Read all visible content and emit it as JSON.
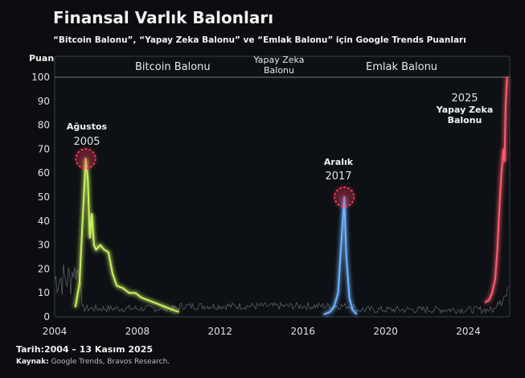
{
  "title": "Finansal Varlık Balonları",
  "subtitle": "“Bitcoin Balonu”, “Yapay Zeka Balonu” ve “Emlak Balonu” için Google Trends Puanları",
  "footer": {
    "date_label": "Tarih:",
    "date_value": "2004 – 13 Kasım 2025",
    "source_label": "Kaynak:",
    "source_value": "Google Trends, Bravos Research."
  },
  "chart_data": {
    "type": "line",
    "ylabel": "Puan",
    "xlim": [
      2004,
      2026
    ],
    "ylim": [
      0,
      100
    ],
    "x_ticks": [
      2004,
      2008,
      2012,
      2016,
      2020,
      2024
    ],
    "y_ticks": [
      0,
      10,
      20,
      30,
      40,
      50,
      60,
      70,
      80,
      90,
      100
    ],
    "legend_placement": "top",
    "series": [
      {
        "name": "Bitcoin Balonu",
        "color": "#6fb3ff",
        "x": [
          2017.0,
          2017.3,
          2017.5,
          2017.7,
          2017.85,
          2018.0,
          2018.1,
          2018.25,
          2018.4,
          2018.6
        ],
        "y": [
          1,
          2,
          4,
          10,
          30,
          50,
          25,
          8,
          3,
          1
        ]
      },
      {
        "name": "Yapay Zeka\nBalonu",
        "color": "#ff5c6e",
        "x": [
          2024.8,
          2025.0,
          2025.15,
          2025.3,
          2025.4,
          2025.5,
          2025.6,
          2025.7,
          2025.75,
          2025.8,
          2025.87
        ],
        "y": [
          6,
          7,
          10,
          16,
          28,
          45,
          60,
          70,
          65,
          88,
          100
        ]
      },
      {
        "name": "Emlak Balonu",
        "color": "#c8f060",
        "x": [
          2005.0,
          2005.2,
          2005.35,
          2005.5,
          2005.6,
          2005.7,
          2005.8,
          2005.9,
          2006.0,
          2006.2,
          2006.4,
          2006.6,
          2006.8,
          2007.0,
          2007.3,
          2007.6,
          2007.9,
          2008.2,
          2008.5,
          2008.8,
          2009.1,
          2009.4,
          2009.7,
          2010.0
        ],
        "y": [
          4,
          14,
          40,
          66,
          58,
          33,
          43,
          30,
          28,
          30,
          28,
          27,
          18,
          13,
          12,
          10,
          10,
          8,
          7,
          6,
          5,
          4,
          3,
          2
        ]
      }
    ],
    "background_series_color": "#7a7f86",
    "annotations": [
      {
        "line1": "Ağustos",
        "line2": "2005",
        "x": 2005.5,
        "y": 66,
        "color": "#ff3b5c"
      },
      {
        "line1": "Aralık",
        "line2": "2017",
        "x": 2018.0,
        "y": 50,
        "color": "#ff3b5c"
      },
      {
        "line1": "2025",
        "line2": "Yapay Zeka",
        "line3": "Balonu",
        "x": 2025.85,
        "y": 100
      }
    ]
  }
}
